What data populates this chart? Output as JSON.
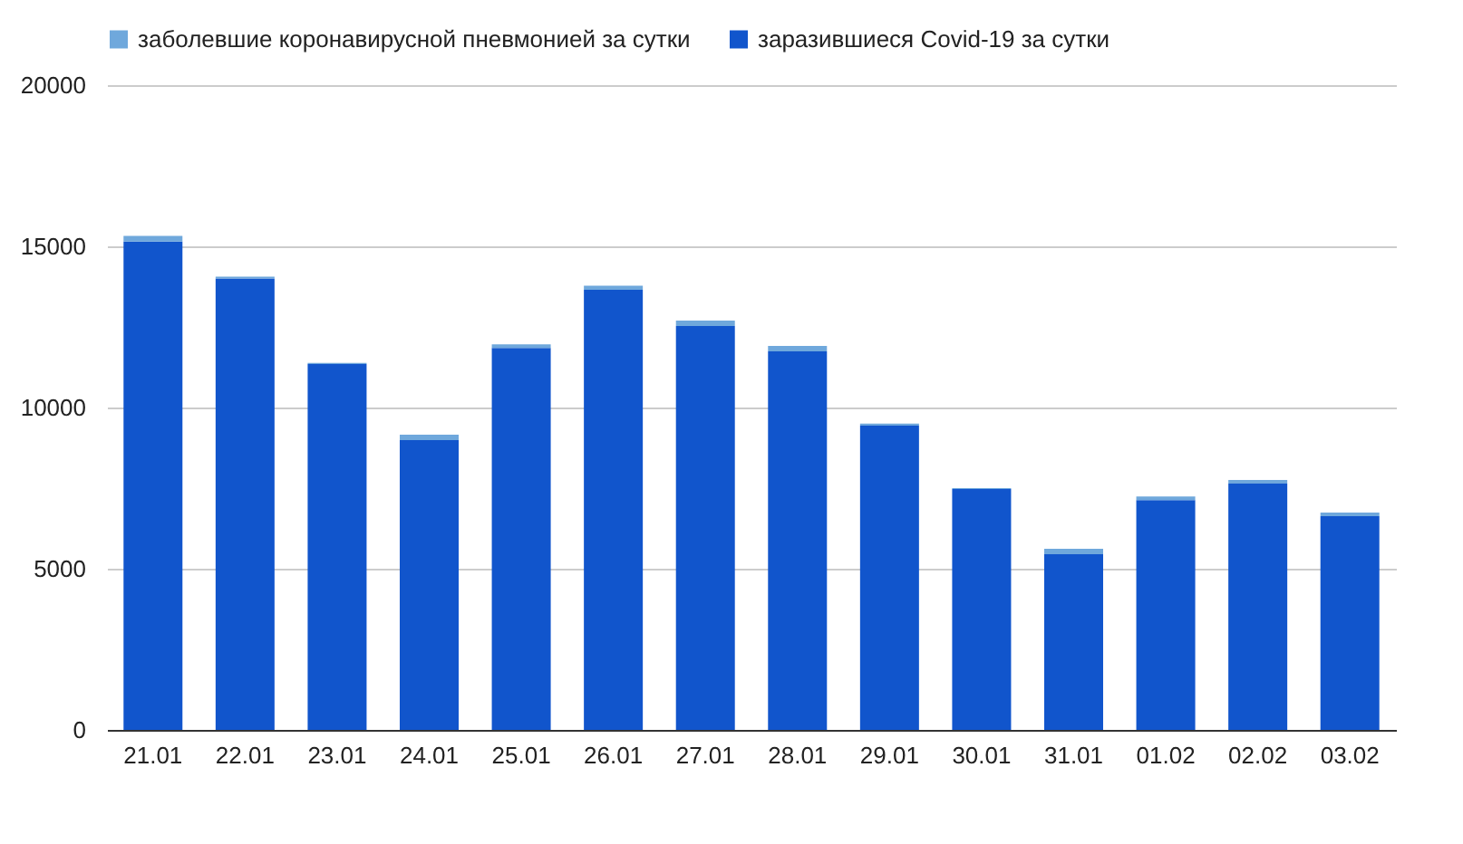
{
  "chart_data": {
    "type": "bar",
    "stacked": true,
    "categories": [
      "21.01",
      "22.01",
      "23.01",
      "24.01",
      "25.01",
      "26.01",
      "27.01",
      "28.01",
      "29.01",
      "30.01",
      "31.01",
      "01.02",
      "02.02",
      "03.02"
    ],
    "series": [
      {
        "name": "заразившиеся Covid-19 за сутки",
        "color": "#1155cc",
        "values": [
          15150,
          14000,
          11350,
          8990,
          11850,
          13650,
          12530,
          11740,
          9440,
          7470,
          5450,
          7130,
          7640,
          6630
        ]
      },
      {
        "name": "заболевшие коронавирусной пневмонией за сутки",
        "color": "#6fa8dc",
        "values": [
          170,
          60,
          30,
          170,
          110,
          130,
          170,
          170,
          60,
          30,
          170,
          110,
          110,
          110
        ]
      }
    ],
    "ylim": [
      0,
      20000
    ],
    "yticks": [
      0,
      5000,
      10000,
      15000,
      20000
    ],
    "grid": "y",
    "legend": "top"
  }
}
